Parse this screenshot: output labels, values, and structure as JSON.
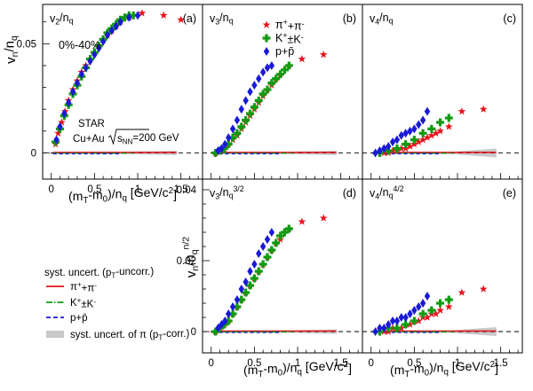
{
  "colors": {
    "pion": "#e8121b",
    "kaon": "#119a11",
    "proton": "#1a1ad6",
    "band": "#c8c8c8"
  },
  "labels": {
    "y_top": "v<sub>n</sub>/n<sub>q</sub>",
    "y_bottom": "v<sub>n</sub>/n<sub>q</sub><sup>n/2</sup>",
    "x_axis": "(m<sub>T</sub>-m<sub>0</sub>)/n<sub>q</sub> [GeV/c<sup>2</sup>]",
    "centrality": "0%-40%",
    "experiment": "STAR",
    "system": "Cu+Au",
    "energy": "s<sub>NN</sub>=200 GeV",
    "legend_title": "syst. uncert. (p<sub>T</sub>-uncorr.)",
    "band_label": "syst. uncert. of π (p<sub>T</sub>-corr.)"
  },
  "chart_data": [
    {
      "panel": "a",
      "label": "(a)",
      "title": "v<sub>2</sub>/n<sub>q</sub>",
      "type": "scatter",
      "xlim": [
        -0.1,
        1.75
      ],
      "ylim": [
        -0.012,
        0.068
      ],
      "yticks": [
        0,
        0.05
      ],
      "yticklabels": [
        "0",
        "0.05"
      ],
      "xticks": [
        0,
        0.5,
        1,
        1.5
      ],
      "xticklabels": [
        "0",
        "0.5",
        "1",
        "1.5"
      ],
      "series": [
        {
          "name": "π<sup>+</sup>+π<sup>-</sup>",
          "marker": "star",
          "x": [
            0.05,
            0.08,
            0.12,
            0.16,
            0.2,
            0.25,
            0.3,
            0.35,
            0.4,
            0.45,
            0.5,
            0.55,
            0.6,
            0.65,
            0.7,
            0.75,
            0.8,
            0.9,
            1.05,
            1.3,
            1.5
          ],
          "y": [
            0.004,
            0.009,
            0.014,
            0.019,
            0.024,
            0.029,
            0.033,
            0.037,
            0.04,
            0.043,
            0.046,
            0.049,
            0.052,
            0.054,
            0.056,
            0.058,
            0.06,
            0.062,
            0.064,
            0.063,
            0.061
          ]
        },
        {
          "name": "K<sup>+</sup>±K<sup>-</sup>",
          "marker": "cross",
          "x": [
            0.05,
            0.1,
            0.15,
            0.2,
            0.25,
            0.3,
            0.35,
            0.4,
            0.45,
            0.5,
            0.55,
            0.6,
            0.65,
            0.7,
            0.75,
            0.8,
            0.85,
            0.9,
            0.95
          ],
          "y": [
            0.005,
            0.011,
            0.017,
            0.022,
            0.027,
            0.031,
            0.035,
            0.039,
            0.043,
            0.046,
            0.049,
            0.052,
            0.055,
            0.057,
            0.059,
            0.061,
            0.062,
            0.063,
            0.063
          ]
        },
        {
          "name": "p+p̄",
          "marker": "diamond",
          "x": [
            0.06,
            0.1,
            0.15,
            0.2,
            0.25,
            0.3,
            0.35,
            0.4,
            0.45,
            0.5,
            0.55,
            0.6,
            0.65,
            0.7,
            0.75,
            0.8,
            0.9,
            1.0
          ],
          "y": [
            0.006,
            0.012,
            0.018,
            0.023,
            0.028,
            0.032,
            0.036,
            0.039,
            0.042,
            0.045,
            0.048,
            0.051,
            0.054,
            0.056,
            0.058,
            0.06,
            0.062,
            0.063
          ]
        }
      ]
    },
    {
      "panel": "b",
      "label": "(b)",
      "title": "v<sub>3</sub>/n<sub>q</sub>",
      "type": "scatter",
      "xlim": [
        -0.1,
        1.75
      ],
      "ylim": [
        -0.012,
        0.068
      ],
      "series": [
        {
          "name": "π<sup>+</sup>+π<sup>-</sup>",
          "marker": "star",
          "x": [
            0.05,
            0.1,
            0.15,
            0.2,
            0.25,
            0.3,
            0.35,
            0.4,
            0.45,
            0.5,
            0.55,
            0.6,
            0.65,
            0.7,
            0.75,
            0.8,
            0.9,
            1.05,
            1.3
          ],
          "y": [
            0.0,
            0.001,
            0.002,
            0.004,
            0.006,
            0.008,
            0.011,
            0.014,
            0.017,
            0.02,
            0.023,
            0.026,
            0.029,
            0.031,
            0.034,
            0.036,
            0.04,
            0.043,
            0.045
          ]
        },
        {
          "name": "K<sup>+</sup>±K<sup>-</sup>",
          "marker": "cross",
          "x": [
            0.05,
            0.1,
            0.15,
            0.2,
            0.25,
            0.3,
            0.35,
            0.4,
            0.45,
            0.5,
            0.55,
            0.6,
            0.65,
            0.7,
            0.75,
            0.8,
            0.85,
            0.9
          ],
          "y": [
            0.0,
            0.001,
            0.002,
            0.004,
            0.007,
            0.009,
            0.012,
            0.015,
            0.018,
            0.021,
            0.024,
            0.027,
            0.029,
            0.032,
            0.034,
            0.036,
            0.038,
            0.04
          ]
        },
        {
          "name": "p+p̄",
          "marker": "diamond",
          "x": [
            0.08,
            0.12,
            0.16,
            0.2,
            0.25,
            0.3,
            0.35,
            0.4,
            0.45,
            0.5,
            0.55,
            0.6,
            0.65,
            0.7
          ],
          "y": [
            0.001,
            0.002,
            0.004,
            0.007,
            0.011,
            0.015,
            0.02,
            0.024,
            0.028,
            0.031,
            0.034,
            0.037,
            0.039,
            0.04
          ]
        }
      ]
    },
    {
      "panel": "c",
      "label": "(c)",
      "title": "v<sub>4</sub>/n<sub>q</sub>",
      "type": "scatter",
      "xlim": [
        -0.1,
        1.75
      ],
      "ylim": [
        -0.012,
        0.068
      ],
      "series": [
        {
          "name": "π<sup>+</sup>+π<sup>-</sup>",
          "marker": "star",
          "x": [
            0.15,
            0.2,
            0.25,
            0.3,
            0.35,
            0.4,
            0.45,
            0.5,
            0.55,
            0.6,
            0.65,
            0.7,
            0.75,
            0.8,
            0.9,
            1.05,
            1.3
          ],
          "y": [
            0.0,
            0.0,
            0.001,
            0.001,
            0.002,
            0.002,
            0.003,
            0.004,
            0.005,
            0.006,
            0.007,
            0.008,
            0.009,
            0.01,
            0.012,
            0.019,
            0.02
          ]
        },
        {
          "name": "K<sup>+</sup>±K<sup>-</sup>",
          "marker": "cross",
          "x": [
            0.1,
            0.2,
            0.3,
            0.4,
            0.5,
            0.6,
            0.7,
            0.8,
            0.9
          ],
          "y": [
            0.0,
            0.001,
            0.002,
            0.004,
            0.006,
            0.009,
            0.011,
            0.014,
            0.016
          ]
        },
        {
          "name": "p+p̄",
          "marker": "diamond",
          "x": [
            0.05,
            0.1,
            0.15,
            0.2,
            0.25,
            0.3,
            0.35,
            0.4,
            0.45,
            0.5,
            0.55,
            0.6,
            0.65
          ],
          "y": [
            0.0,
            0.001,
            0.002,
            0.003,
            0.005,
            0.006,
            0.008,
            0.009,
            0.01,
            0.011,
            0.013,
            0.015,
            0.019
          ]
        }
      ]
    },
    {
      "panel": "d",
      "label": "(d)",
      "title": "v<sub>3</sub>/n<sub>q</sub><sup>3/2</sup>",
      "type": "scatter",
      "xlim": [
        -0.1,
        1.75
      ],
      "ylim": [
        -0.006,
        0.043
      ],
      "yticks": [
        0,
        0.02,
        0.04
      ],
      "yticklabels": [
        "0",
        "0.02",
        "0.04"
      ],
      "xticks": [
        0,
        0.5,
        1,
        1.5
      ],
      "xticklabels": [
        "0",
        "0.5",
        "1",
        "1.5"
      ],
      "series": [
        {
          "name": "π<sup>+</sup>+π<sup>-</sup>",
          "marker": "star",
          "x": [
            0.05,
            0.1,
            0.15,
            0.2,
            0.25,
            0.3,
            0.35,
            0.4,
            0.45,
            0.5,
            0.55,
            0.6,
            0.65,
            0.7,
            0.75,
            0.8,
            0.9,
            1.05,
            1.3
          ],
          "y": [
            0.0,
            0.001,
            0.002,
            0.003,
            0.005,
            0.007,
            0.009,
            0.011,
            0.013,
            0.015,
            0.017,
            0.019,
            0.021,
            0.023,
            0.025,
            0.026,
            0.029,
            0.031,
            0.032
          ]
        },
        {
          "name": "K<sup>+</sup>±K<sup>-</sup>",
          "marker": "cross",
          "x": [
            0.05,
            0.1,
            0.15,
            0.2,
            0.25,
            0.3,
            0.35,
            0.4,
            0.45,
            0.5,
            0.55,
            0.6,
            0.65,
            0.7,
            0.75,
            0.8,
            0.85,
            0.9
          ],
          "y": [
            0.0,
            0.001,
            0.002,
            0.003,
            0.005,
            0.007,
            0.009,
            0.011,
            0.013,
            0.015,
            0.017,
            0.019,
            0.021,
            0.023,
            0.025,
            0.027,
            0.028,
            0.029
          ]
        },
        {
          "name": "p+p̄",
          "marker": "diamond",
          "x": [
            0.08,
            0.12,
            0.16,
            0.2,
            0.25,
            0.3,
            0.35,
            0.4,
            0.45,
            0.5,
            0.55,
            0.6,
            0.65,
            0.7
          ],
          "y": [
            0.001,
            0.002,
            0.003,
            0.005,
            0.007,
            0.009,
            0.012,
            0.014,
            0.017,
            0.019,
            0.022,
            0.024,
            0.026,
            0.028
          ]
        }
      ]
    },
    {
      "panel": "e",
      "label": "(e)",
      "title": "v<sub>4</sub>/n<sub>q</sub><sup>4/2</sup>",
      "type": "scatter",
      "xlim": [
        -0.1,
        1.75
      ],
      "ylim": [
        -0.006,
        0.043
      ],
      "xticks": [
        0,
        0.5,
        1,
        1.5
      ],
      "xticklabels": [
        "0",
        "0.5",
        "1",
        "1.5"
      ],
      "series": [
        {
          "name": "π<sup>+</sup>+π<sup>-</sup>",
          "marker": "star",
          "x": [
            0.15,
            0.2,
            0.25,
            0.3,
            0.35,
            0.4,
            0.45,
            0.5,
            0.55,
            0.6,
            0.65,
            0.7,
            0.75,
            0.8,
            0.9,
            1.05,
            1.3
          ],
          "y": [
            0.0,
            0.0,
            0.001,
            0.001,
            0.001,
            0.002,
            0.002,
            0.003,
            0.003,
            0.004,
            0.004,
            0.005,
            0.005,
            0.006,
            0.007,
            0.011,
            0.012
          ]
        },
        {
          "name": "K<sup>+</sup>±K<sup>-</sup>",
          "marker": "cross",
          "x": [
            0.1,
            0.2,
            0.3,
            0.4,
            0.5,
            0.6,
            0.7,
            0.8,
            0.9
          ],
          "y": [
            0.0,
            0.001,
            0.001,
            0.002,
            0.003,
            0.005,
            0.006,
            0.008,
            0.009
          ]
        },
        {
          "name": "p+p̄",
          "marker": "diamond",
          "x": [
            0.05,
            0.1,
            0.15,
            0.2,
            0.25,
            0.3,
            0.35,
            0.4,
            0.45,
            0.5,
            0.55,
            0.6,
            0.65
          ],
          "y": [
            0.0,
            0.001,
            0.001,
            0.002,
            0.003,
            0.003,
            0.004,
            0.004,
            0.005,
            0.006,
            0.007,
            0.008,
            0.01
          ]
        }
      ]
    }
  ]
}
